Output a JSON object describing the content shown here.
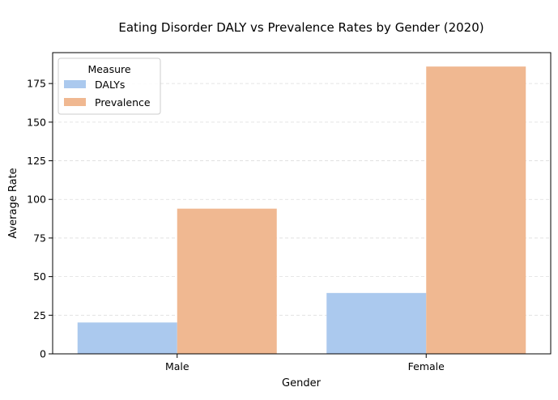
{
  "chart_data": {
    "type": "bar",
    "title": "Eating Disorder DALY vs Prevalence Rates by Gender (2020)",
    "xlabel": "Gender",
    "ylabel": "Average Rate",
    "categories": [
      "Male",
      "Female"
    ],
    "series": [
      {
        "name": "DALYs",
        "values": [
          20.3,
          39.4
        ],
        "color": "#abc9ee"
      },
      {
        "name": "Prevalence",
        "values": [
          94.0,
          186.0
        ],
        "color": "#f0b891"
      }
    ],
    "ylim": [
      0,
      195
    ],
    "yticks": [
      0,
      25,
      50,
      75,
      100,
      125,
      150,
      175
    ],
    "grid": "y-dashed",
    "legend": {
      "title": "Measure",
      "position": "top-left"
    }
  }
}
